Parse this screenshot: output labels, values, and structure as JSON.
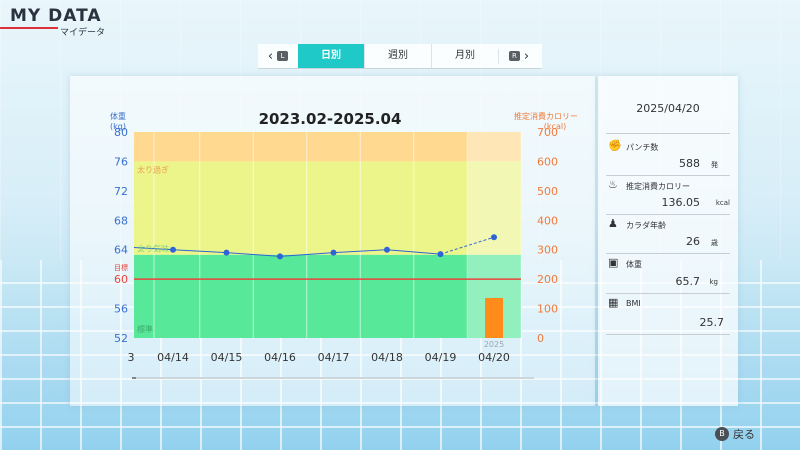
{
  "header": {
    "title": "MY DATA",
    "subtitle": "マイデータ"
  },
  "tabs": {
    "prev_key": "L",
    "next_key": "R",
    "items": [
      {
        "label": "日別",
        "active": true
      },
      {
        "label": "週別",
        "active": false
      },
      {
        "label": "月別",
        "active": false
      }
    ]
  },
  "chart": {
    "title": "2023.02-2025.04",
    "left_axis_label": "体重",
    "left_axis_unit": "(kg)",
    "right_axis_label": "推定消費カロリー",
    "right_axis_unit": "(kcal)",
    "zone_over": "太り過ぎ",
    "zone_over_weight": "太り気味",
    "zone_normal": "標準",
    "target_label": "目標",
    "year_label": "2025",
    "left_ticks": [
      "80",
      "76",
      "72",
      "68",
      "64",
      "60",
      "56",
      "52"
    ],
    "right_ticks": [
      "700",
      "600",
      "500",
      "400",
      "300",
      "200",
      "100",
      "0"
    ],
    "x_first_partial": "3",
    "x_ticks": [
      "04/14",
      "04/15",
      "04/16",
      "04/17",
      "04/18",
      "04/19",
      "04/20"
    ]
  },
  "chart_data": {
    "type": "line",
    "categories": [
      "04/14",
      "04/15",
      "04/16",
      "04/17",
      "04/18",
      "04/19",
      "04/20"
    ],
    "series": [
      {
        "name": "体重",
        "axis": "left",
        "values": [
          64.0,
          63.6,
          63.1,
          63.6,
          64.0,
          63.4,
          65.7
        ]
      },
      {
        "name": "推定消費カロリー",
        "axis": "right",
        "type": "bar",
        "values": [
          0,
          0,
          0,
          0,
          0,
          0,
          136.05
        ]
      }
    ],
    "left_ylim": [
      52,
      80
    ],
    "right_ylim": [
      0,
      700
    ],
    "target_weight": 60,
    "zones": [
      {
        "name": "太り過ぎ",
        "from": 76,
        "to": 80,
        "color": "#ffd98f"
      },
      {
        "name": "太り気味",
        "from": 63.3,
        "to": 76,
        "color": "#ecf58a"
      },
      {
        "name": "標準",
        "from": 52,
        "to": 63.3,
        "color": "#57e89a"
      }
    ],
    "title": "2023.02-2025.04",
    "xlabel": "",
    "ylabel": "体重 (kg)",
    "y2label": "推定消費カロリー (kcal)"
  },
  "side": {
    "date": "2025/04/20",
    "punch_label": "パンチ数",
    "punch_value": "588",
    "punch_unit": "発",
    "kcal_label": "推定消費カロリー",
    "kcal_value": "136.05",
    "kcal_unit": "kcal",
    "age_label": "カラダ年齢",
    "age_value": "26",
    "age_unit": "歳",
    "weight_label": "体重",
    "weight_value": "65.7",
    "weight_unit": "kg",
    "bmi_label": "BMI",
    "bmi_value": "25.7"
  },
  "footer": {
    "back_key": "B",
    "back_label": "戻る"
  },
  "colors": {
    "accent": "#1fc9c7",
    "weight_line": "#2f64d6",
    "target_line": "#e8453c",
    "kcal_bar": "#ff8c1a"
  }
}
